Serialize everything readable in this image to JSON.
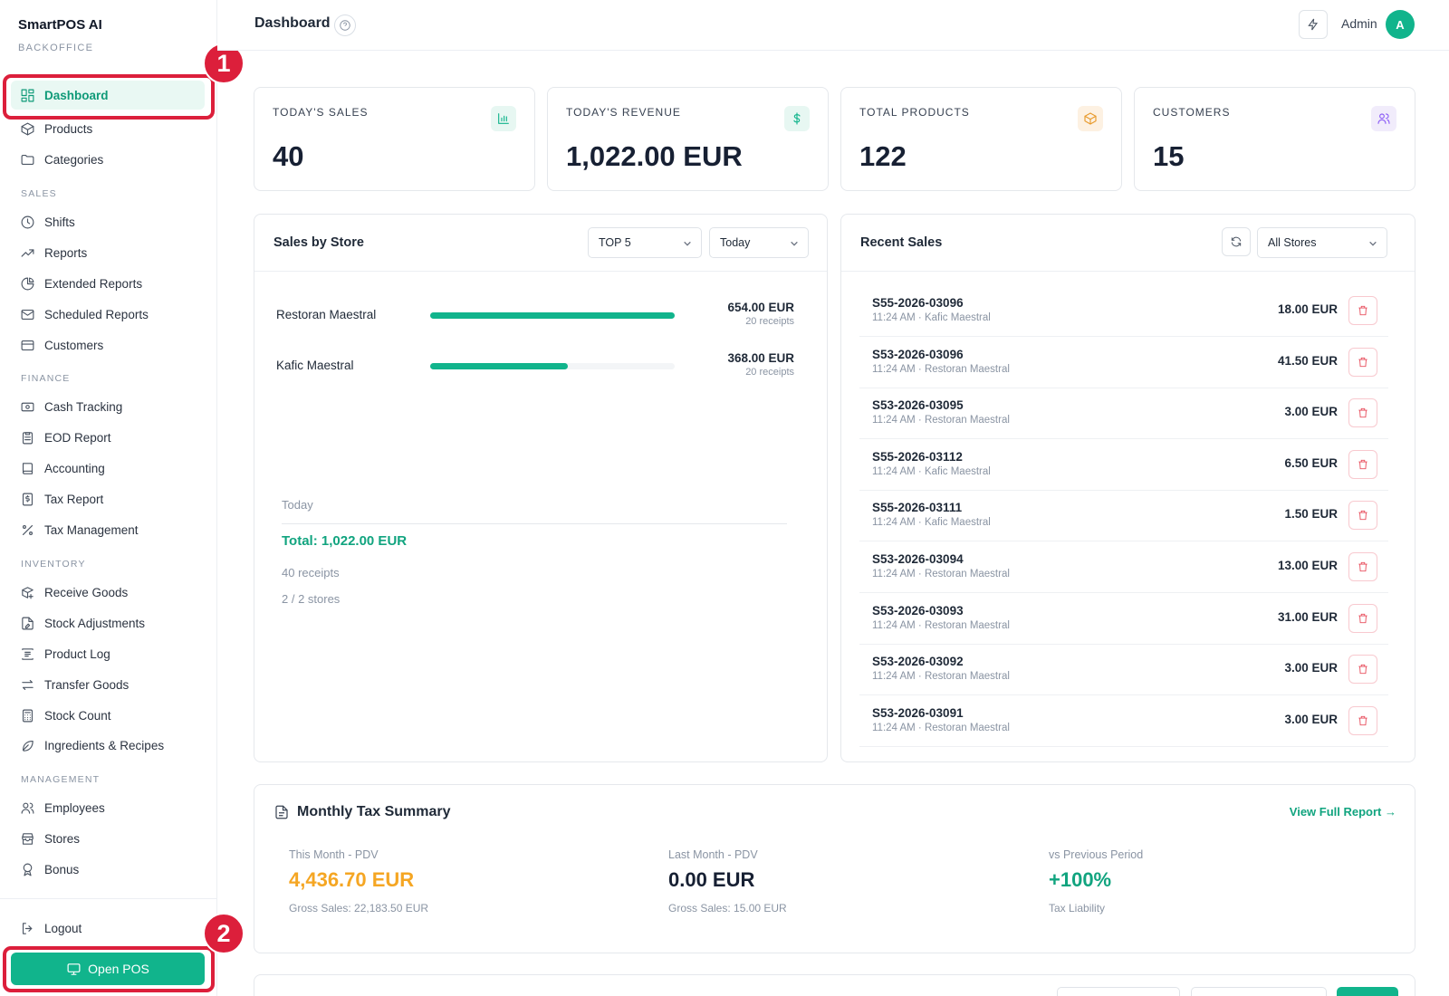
{
  "app": {
    "name": "SmartPOS AI",
    "subtitle": "BACKOFFICE"
  },
  "sidebar": {
    "sections": {
      "sales": "SALES",
      "finance": "FINANCE",
      "inventory": "INVENTORY",
      "management": "MANAGEMENT"
    },
    "items": {
      "dashboard": "Dashboard",
      "products": "Products",
      "categories": "Categories",
      "shifts": "Shifts",
      "reports": "Reports",
      "extended_reports": "Extended Reports",
      "scheduled_reports": "Scheduled Reports",
      "customers": "Customers",
      "cash_tracking": "Cash Tracking",
      "eod_report": "EOD Report",
      "accounting": "Accounting",
      "tax_report": "Tax Report",
      "tax_management": "Tax Management",
      "receive_goods": "Receive Goods",
      "stock_adjustments": "Stock Adjustments",
      "product_log": "Product Log",
      "transfer_goods": "Transfer Goods",
      "stock_count": "Stock Count",
      "ingredients_recipes": "Ingredients & Recipes",
      "employees": "Employees",
      "stores": "Stores",
      "bonus": "Bonus"
    },
    "logout": "Logout",
    "open_pos": "Open POS"
  },
  "annotations": {
    "first": "1",
    "second": "2"
  },
  "header": {
    "title": "Dashboard",
    "user": "Admin",
    "avatar_initial": "A"
  },
  "stats": [
    {
      "label": "TODAY'S SALES",
      "value": "40",
      "icon": "bar-chart-icon"
    },
    {
      "label": "TODAY'S REVENUE",
      "value": "1,022.00 EUR",
      "icon": "dollar-icon"
    },
    {
      "label": "TOTAL PRODUCTS",
      "value": "122",
      "icon": "box-icon"
    },
    {
      "label": "CUSTOMERS",
      "value": "15",
      "icon": "users-icon"
    }
  ],
  "sales_by_store": {
    "title": "Sales by Store",
    "filter_top": "TOP 5",
    "filter_period": "Today",
    "stores": [
      {
        "name": "Restoran Maestral",
        "amount": "654.00 EUR",
        "receipts": "20 receipts",
        "share": 1.0
      },
      {
        "name": "Kafic Maestral",
        "amount": "368.00 EUR",
        "receipts": "20 receipts",
        "share": 0.563
      }
    ],
    "summary": {
      "period": "Today",
      "total": "Total: 1,022.00 EUR",
      "receipts": "40 receipts",
      "stores": "2 / 2 stores"
    }
  },
  "recent_sales": {
    "title": "Recent Sales",
    "store_filter": "All Stores",
    "rows": [
      {
        "id": "S55-2026-03096",
        "meta": "11:24 AM · Kafic Maestral",
        "amount": "18.00 EUR"
      },
      {
        "id": "S53-2026-03096",
        "meta": "11:24 AM · Restoran Maestral",
        "amount": "41.50 EUR"
      },
      {
        "id": "S53-2026-03095",
        "meta": "11:24 AM · Restoran Maestral",
        "amount": "3.00 EUR"
      },
      {
        "id": "S55-2026-03112",
        "meta": "11:24 AM · Kafic Maestral",
        "amount": "6.50 EUR"
      },
      {
        "id": "S55-2026-03111",
        "meta": "11:24 AM · Kafic Maestral",
        "amount": "1.50 EUR"
      },
      {
        "id": "S53-2026-03094",
        "meta": "11:24 AM · Restoran Maestral",
        "amount": "13.00 EUR"
      },
      {
        "id": "S53-2026-03093",
        "meta": "11:24 AM · Restoran Maestral",
        "amount": "31.00 EUR"
      },
      {
        "id": "S53-2026-03092",
        "meta": "11:24 AM · Restoran Maestral",
        "amount": "3.00 EUR"
      },
      {
        "id": "S53-2026-03091",
        "meta": "11:24 AM · Restoran Maestral",
        "amount": "3.00 EUR"
      }
    ]
  },
  "tax_summary": {
    "title": "Monthly Tax Summary",
    "link": "View Full Report →",
    "this_month": {
      "label": "This Month - PDV",
      "value": "4,436.70 EUR",
      "sub": "Gross Sales: 22,183.50 EUR"
    },
    "last_month": {
      "label": "Last Month - PDV",
      "value": "0.00 EUR",
      "sub": "Gross Sales: 15.00 EUR"
    },
    "comparison": {
      "label": "vs Previous Period",
      "value": "+100%",
      "sub": "Tax Liability"
    }
  },
  "colors": {
    "accent": "#11b48c",
    "annotation": "#dc1f3b",
    "this_month_value": "#f5a623",
    "danger": "#e8505f"
  }
}
